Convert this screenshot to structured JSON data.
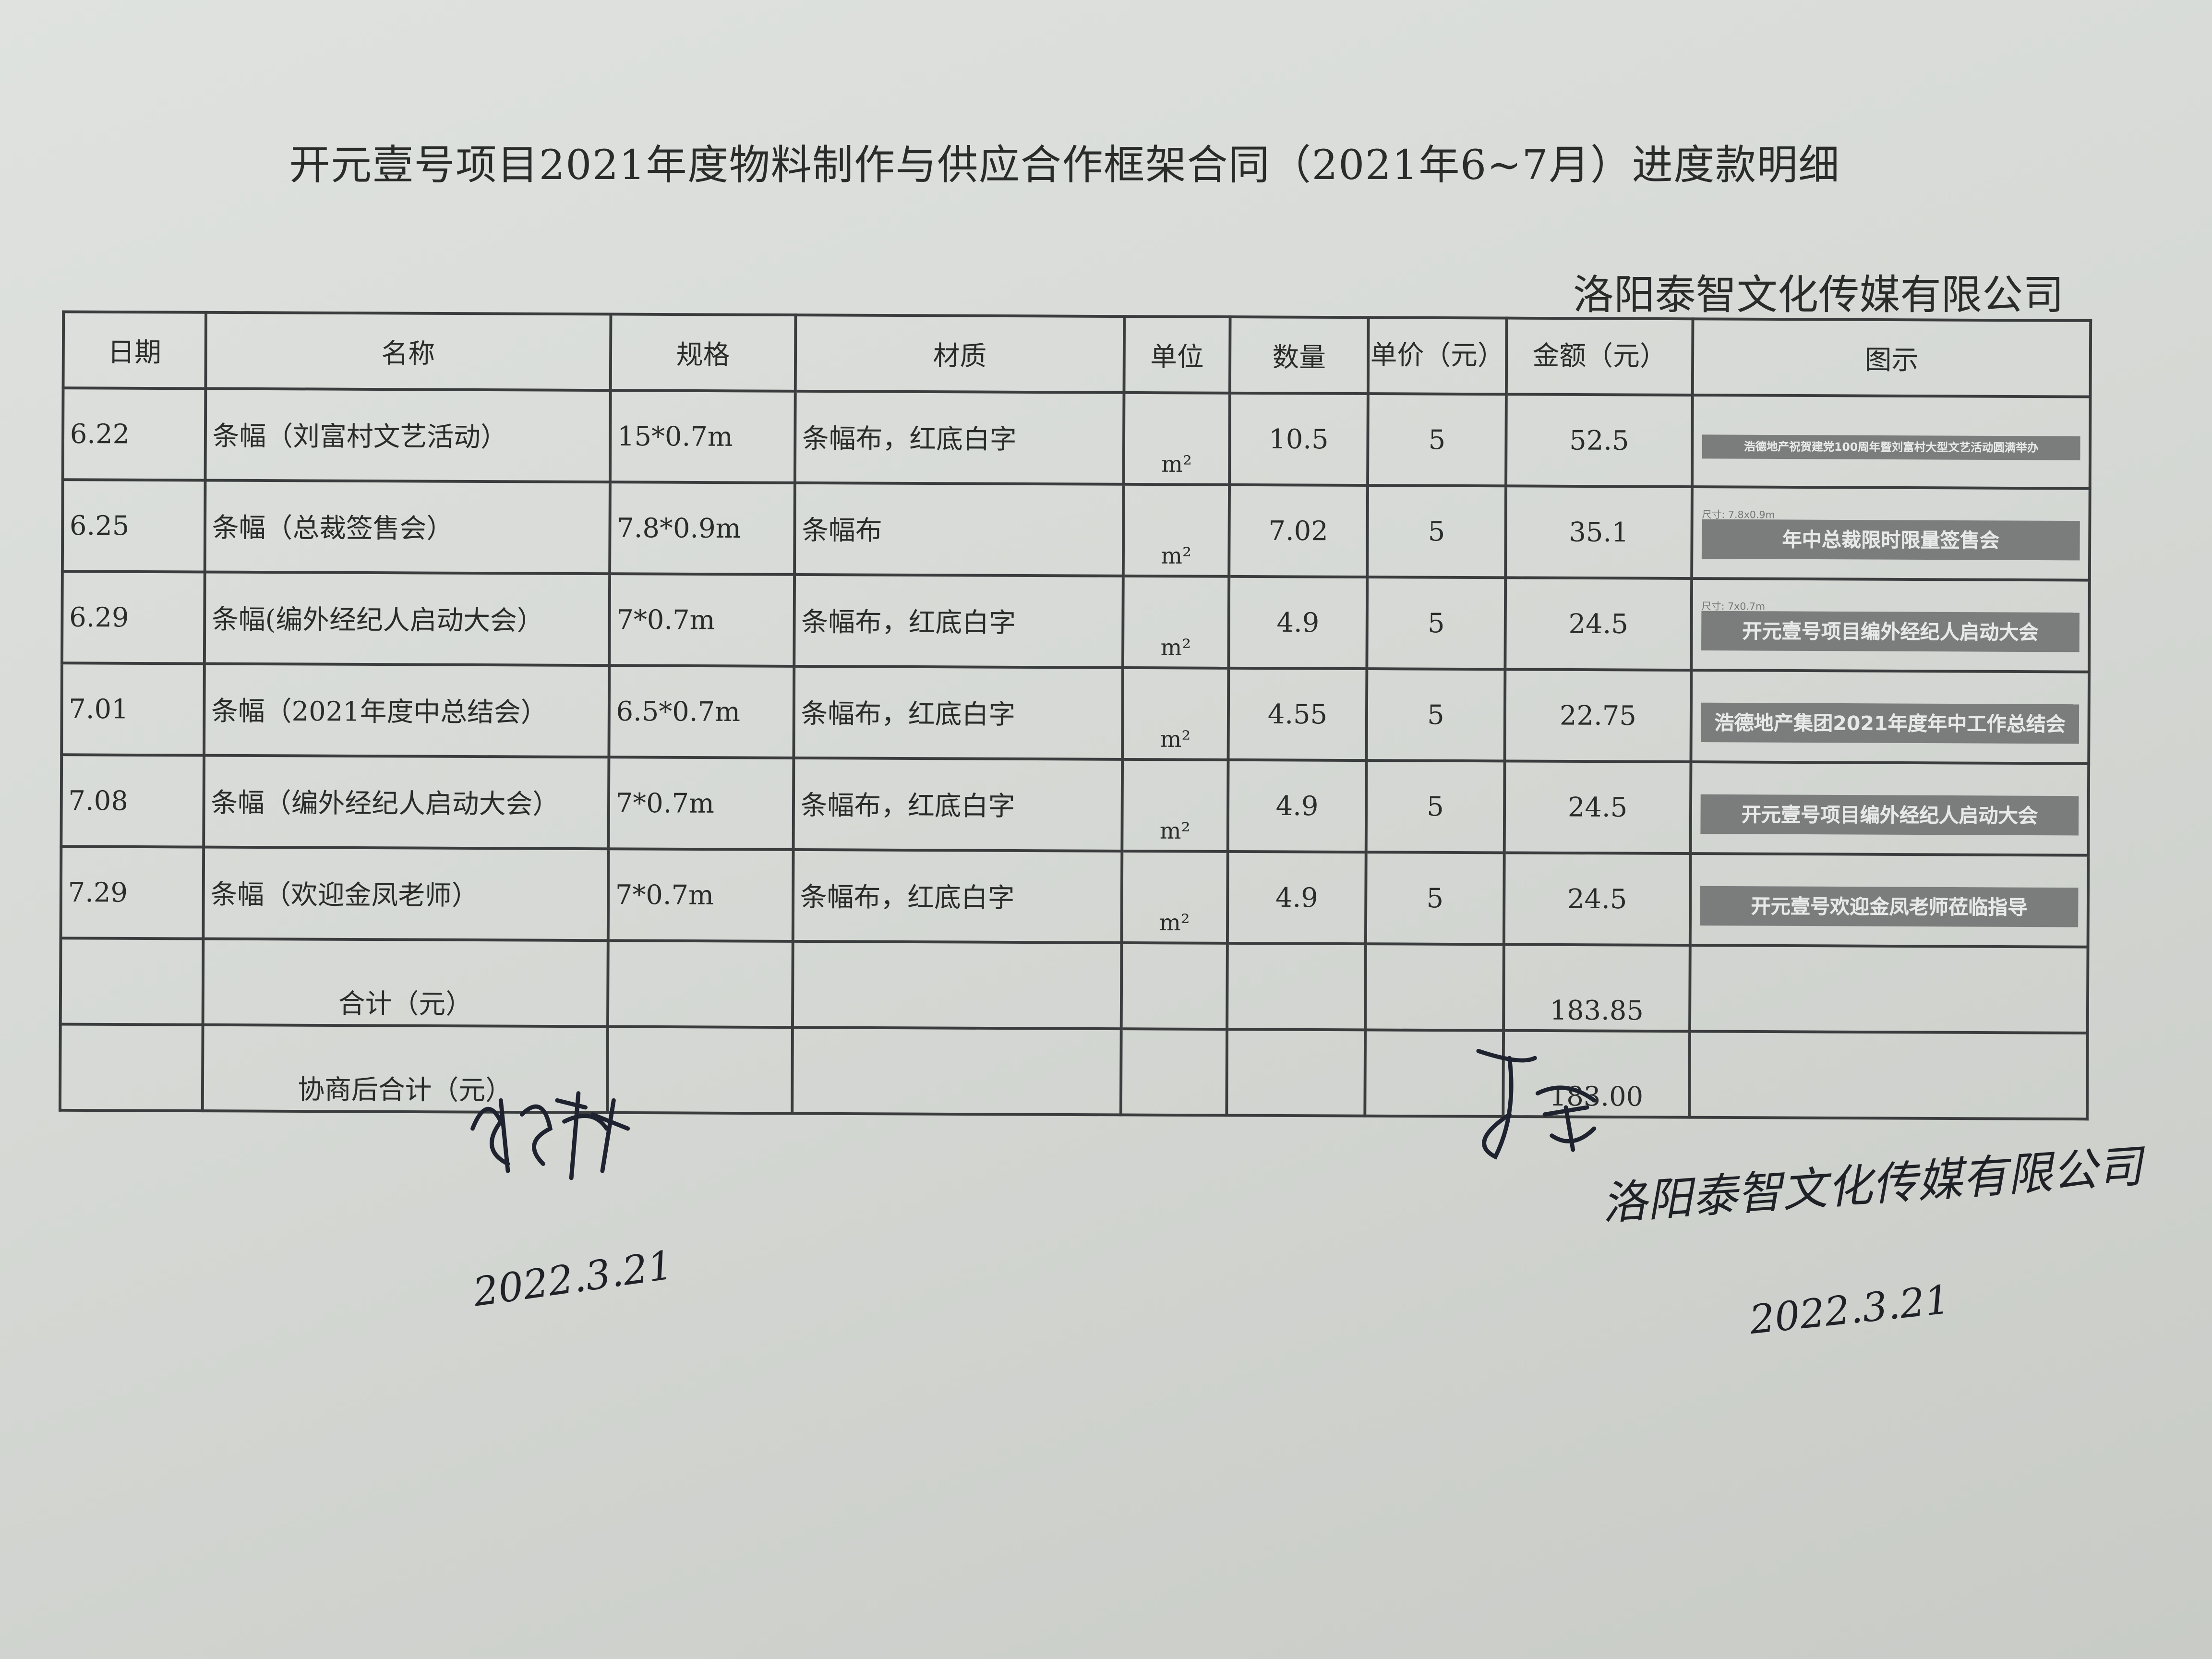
{
  "document": {
    "title": "开元壹号项目2021年度物料制作与供应合作框架合同（2021年6~7月）进度款明细",
    "company": "洛阳泰智文化传媒有限公司"
  },
  "table": {
    "headers": [
      "日期",
      "名称",
      "规格",
      "材质",
      "单位",
      "数量",
      "单价（元）",
      "金额（元）",
      "图示"
    ],
    "rows": [
      {
        "date": "6.22",
        "name": "条幅（刘富村文艺活动）",
        "spec": "15*0.7m",
        "material": "条幅布，红底白字",
        "unit": "m²",
        "qty": "10.5",
        "price": "5",
        "amount": "52.5",
        "banner_size": "",
        "banner_text": "浩德地产祝贺建党100周年暨刘富村大型文艺活动圆满举办"
      },
      {
        "date": "6.25",
        "name": "条幅（总裁签售会）",
        "spec": "7.8*0.9m",
        "material": "条幅布",
        "unit": "m²",
        "qty": "7.02",
        "price": "5",
        "amount": "35.1",
        "banner_size": "尺寸: 7.8x0.9m",
        "banner_text": "年中总裁限时限量签售会"
      },
      {
        "date": "6.29",
        "name": "条幅(编外经纪人启动大会）",
        "spec": "7*0.7m",
        "material": "条幅布，红底白字",
        "unit": "m²",
        "qty": "4.9",
        "price": "5",
        "amount": "24.5",
        "banner_size": "尺寸: 7x0.7m",
        "banner_text": "开元壹号项目编外经纪人启动大会"
      },
      {
        "date": "7.01",
        "name": "条幅（2021年度中总结会）",
        "spec": "6.5*0.7m",
        "material": "条幅布，红底白字",
        "unit": "m²",
        "qty": "4.55",
        "price": "5",
        "amount": "22.75",
        "banner_size": "",
        "banner_text": "浩德地产集团2021年度年中工作总结会"
      },
      {
        "date": "7.08",
        "name": "条幅（编外经纪人启动大会）",
        "spec": "7*0.7m",
        "material": "条幅布，红底白字",
        "unit": "m²",
        "qty": "4.9",
        "price": "5",
        "amount": "24.5",
        "banner_size": "",
        "banner_text": "开元壹号项目编外经纪人启动大会"
      },
      {
        "date": "7.29",
        "name": "条幅（欢迎金凤老师）",
        "spec": "7*0.7m",
        "material": "条幅布，红底白字",
        "unit": "m²",
        "qty": "4.9",
        "price": "5",
        "amount": "24.5",
        "banner_size": "",
        "banner_text": "开元壹号欢迎金凤老师莅临指导"
      }
    ],
    "total_label": "合计（元）",
    "total_value": "183.85",
    "negotiated_label": "协商后合计（元）",
    "negotiated_value": "183.00"
  },
  "signatures": {
    "left_date": "2022.3.21",
    "right_company": "洛阳泰智文化传媒有限公司",
    "right_date": "2022.3.21"
  }
}
